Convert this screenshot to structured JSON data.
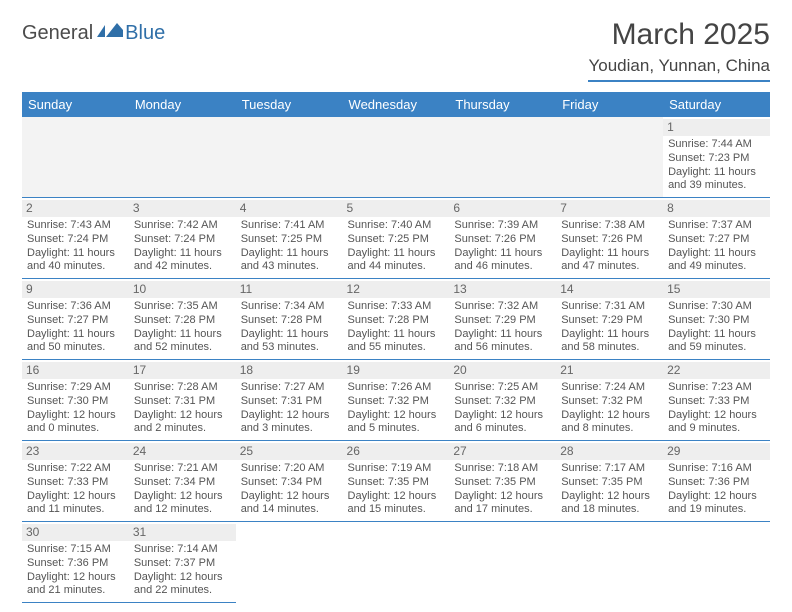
{
  "brand": {
    "part1": "General",
    "part2": "Blue"
  },
  "title": "March 2025",
  "location": "Youdian, Yunnan, China",
  "colors": {
    "accent": "#3b82c4",
    "headerText": "#ffffff",
    "text": "#555555",
    "daybar": "#eeeeee"
  },
  "weekdays": [
    "Sunday",
    "Monday",
    "Tuesday",
    "Wednesday",
    "Thursday",
    "Friday",
    "Saturday"
  ],
  "days": {
    "1": {
      "sr": "7:44 AM",
      "ss": "7:23 PM",
      "dl": "11 hours and 39 minutes."
    },
    "2": {
      "sr": "7:43 AM",
      "ss": "7:24 PM",
      "dl": "11 hours and 40 minutes."
    },
    "3": {
      "sr": "7:42 AM",
      "ss": "7:24 PM",
      "dl": "11 hours and 42 minutes."
    },
    "4": {
      "sr": "7:41 AM",
      "ss": "7:25 PM",
      "dl": "11 hours and 43 minutes."
    },
    "5": {
      "sr": "7:40 AM",
      "ss": "7:25 PM",
      "dl": "11 hours and 44 minutes."
    },
    "6": {
      "sr": "7:39 AM",
      "ss": "7:26 PM",
      "dl": "11 hours and 46 minutes."
    },
    "7": {
      "sr": "7:38 AM",
      "ss": "7:26 PM",
      "dl": "11 hours and 47 minutes."
    },
    "8": {
      "sr": "7:37 AM",
      "ss": "7:27 PM",
      "dl": "11 hours and 49 minutes."
    },
    "9": {
      "sr": "7:36 AM",
      "ss": "7:27 PM",
      "dl": "11 hours and 50 minutes."
    },
    "10": {
      "sr": "7:35 AM",
      "ss": "7:28 PM",
      "dl": "11 hours and 52 minutes."
    },
    "11": {
      "sr": "7:34 AM",
      "ss": "7:28 PM",
      "dl": "11 hours and 53 minutes."
    },
    "12": {
      "sr": "7:33 AM",
      "ss": "7:28 PM",
      "dl": "11 hours and 55 minutes."
    },
    "13": {
      "sr": "7:32 AM",
      "ss": "7:29 PM",
      "dl": "11 hours and 56 minutes."
    },
    "14": {
      "sr": "7:31 AM",
      "ss": "7:29 PM",
      "dl": "11 hours and 58 minutes."
    },
    "15": {
      "sr": "7:30 AM",
      "ss": "7:30 PM",
      "dl": "11 hours and 59 minutes."
    },
    "16": {
      "sr": "7:29 AM",
      "ss": "7:30 PM",
      "dl": "12 hours and 0 minutes."
    },
    "17": {
      "sr": "7:28 AM",
      "ss": "7:31 PM",
      "dl": "12 hours and 2 minutes."
    },
    "18": {
      "sr": "7:27 AM",
      "ss": "7:31 PM",
      "dl": "12 hours and 3 minutes."
    },
    "19": {
      "sr": "7:26 AM",
      "ss": "7:32 PM",
      "dl": "12 hours and 5 minutes."
    },
    "20": {
      "sr": "7:25 AM",
      "ss": "7:32 PM",
      "dl": "12 hours and 6 minutes."
    },
    "21": {
      "sr": "7:24 AM",
      "ss": "7:32 PM",
      "dl": "12 hours and 8 minutes."
    },
    "22": {
      "sr": "7:23 AM",
      "ss": "7:33 PM",
      "dl": "12 hours and 9 minutes."
    },
    "23": {
      "sr": "7:22 AM",
      "ss": "7:33 PM",
      "dl": "12 hours and 11 minutes."
    },
    "24": {
      "sr": "7:21 AM",
      "ss": "7:34 PM",
      "dl": "12 hours and 12 minutes."
    },
    "25": {
      "sr": "7:20 AM",
      "ss": "7:34 PM",
      "dl": "12 hours and 14 minutes."
    },
    "26": {
      "sr": "7:19 AM",
      "ss": "7:35 PM",
      "dl": "12 hours and 15 minutes."
    },
    "27": {
      "sr": "7:18 AM",
      "ss": "7:35 PM",
      "dl": "12 hours and 17 minutes."
    },
    "28": {
      "sr": "7:17 AM",
      "ss": "7:35 PM",
      "dl": "12 hours and 18 minutes."
    },
    "29": {
      "sr": "7:16 AM",
      "ss": "7:36 PM",
      "dl": "12 hours and 19 minutes."
    },
    "30": {
      "sr": "7:15 AM",
      "ss": "7:36 PM",
      "dl": "12 hours and 21 minutes."
    },
    "31": {
      "sr": "7:14 AM",
      "ss": "7:37 PM",
      "dl": "12 hours and 22 minutes."
    }
  },
  "labels": {
    "sunrise": "Sunrise:",
    "sunset": "Sunset:",
    "daylight": "Daylight:"
  },
  "grid": [
    [
      null,
      null,
      null,
      null,
      null,
      null,
      "1"
    ],
    [
      "2",
      "3",
      "4",
      "5",
      "6",
      "7",
      "8"
    ],
    [
      "9",
      "10",
      "11",
      "12",
      "13",
      "14",
      "15"
    ],
    [
      "16",
      "17",
      "18",
      "19",
      "20",
      "21",
      "22"
    ],
    [
      "23",
      "24",
      "25",
      "26",
      "27",
      "28",
      "29"
    ],
    [
      "30",
      "31",
      null,
      null,
      null,
      null,
      null
    ]
  ]
}
